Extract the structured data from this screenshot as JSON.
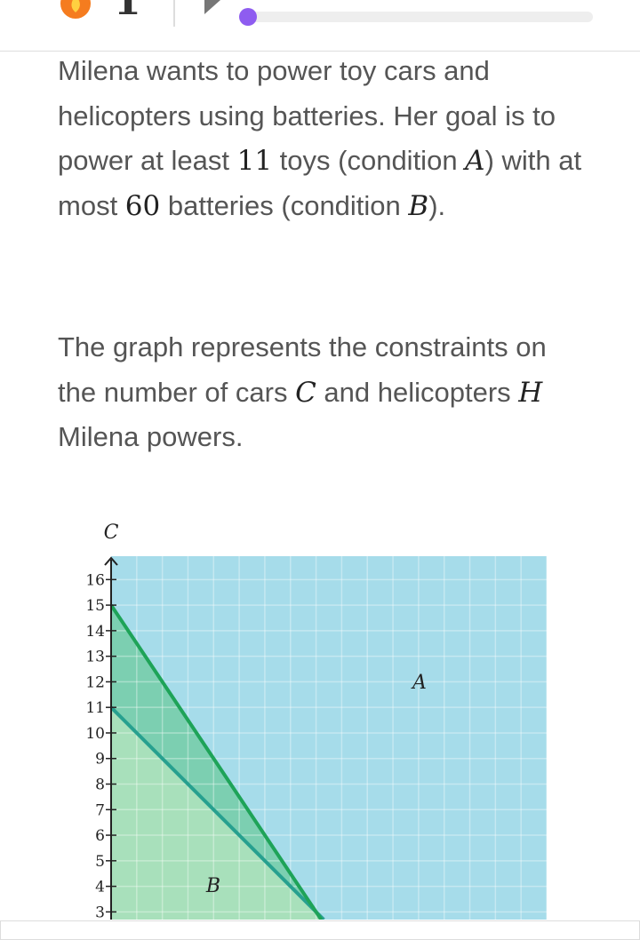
{
  "top_bar": {
    "streak": "1"
  },
  "paragraphs": [
    [
      "Milena wants to power toy cars and helicopters using batteries. Her goal is to power at least ",
      "11",
      " toys (condition ",
      "A",
      ") with at most ",
      "60",
      " batteries (condition ",
      "B",
      ")."
    ],
    [
      "The graph represents the constraints on the number of cars ",
      "C",
      " and helicopters ",
      "H",
      " Milena powers."
    ]
  ],
  "graph": {
    "y_axis_label": "C",
    "xlim": [
      0,
      17
    ],
    "ylim": [
      2.7,
      16.8
    ],
    "xgrid": [
      1,
      2,
      3,
      4,
      5,
      6,
      7,
      8,
      9,
      10,
      11,
      12,
      13,
      14,
      15,
      16,
      17
    ],
    "yticks": [
      3,
      4,
      5,
      6,
      7,
      8,
      9,
      10,
      11,
      12,
      13,
      14,
      15,
      16
    ],
    "regions": [
      {
        "label": "A",
        "color": "#a6dcea"
      },
      {
        "label": "B",
        "color": "#52c277"
      }
    ],
    "lines": [
      {
        "color": "#27a08f",
        "x": [
          0,
          8
        ],
        "y": [
          11,
          3
        ]
      },
      {
        "color": "#1ea358",
        "x": [
          0,
          8
        ],
        "y": [
          15,
          3
        ]
      }
    ]
  }
}
